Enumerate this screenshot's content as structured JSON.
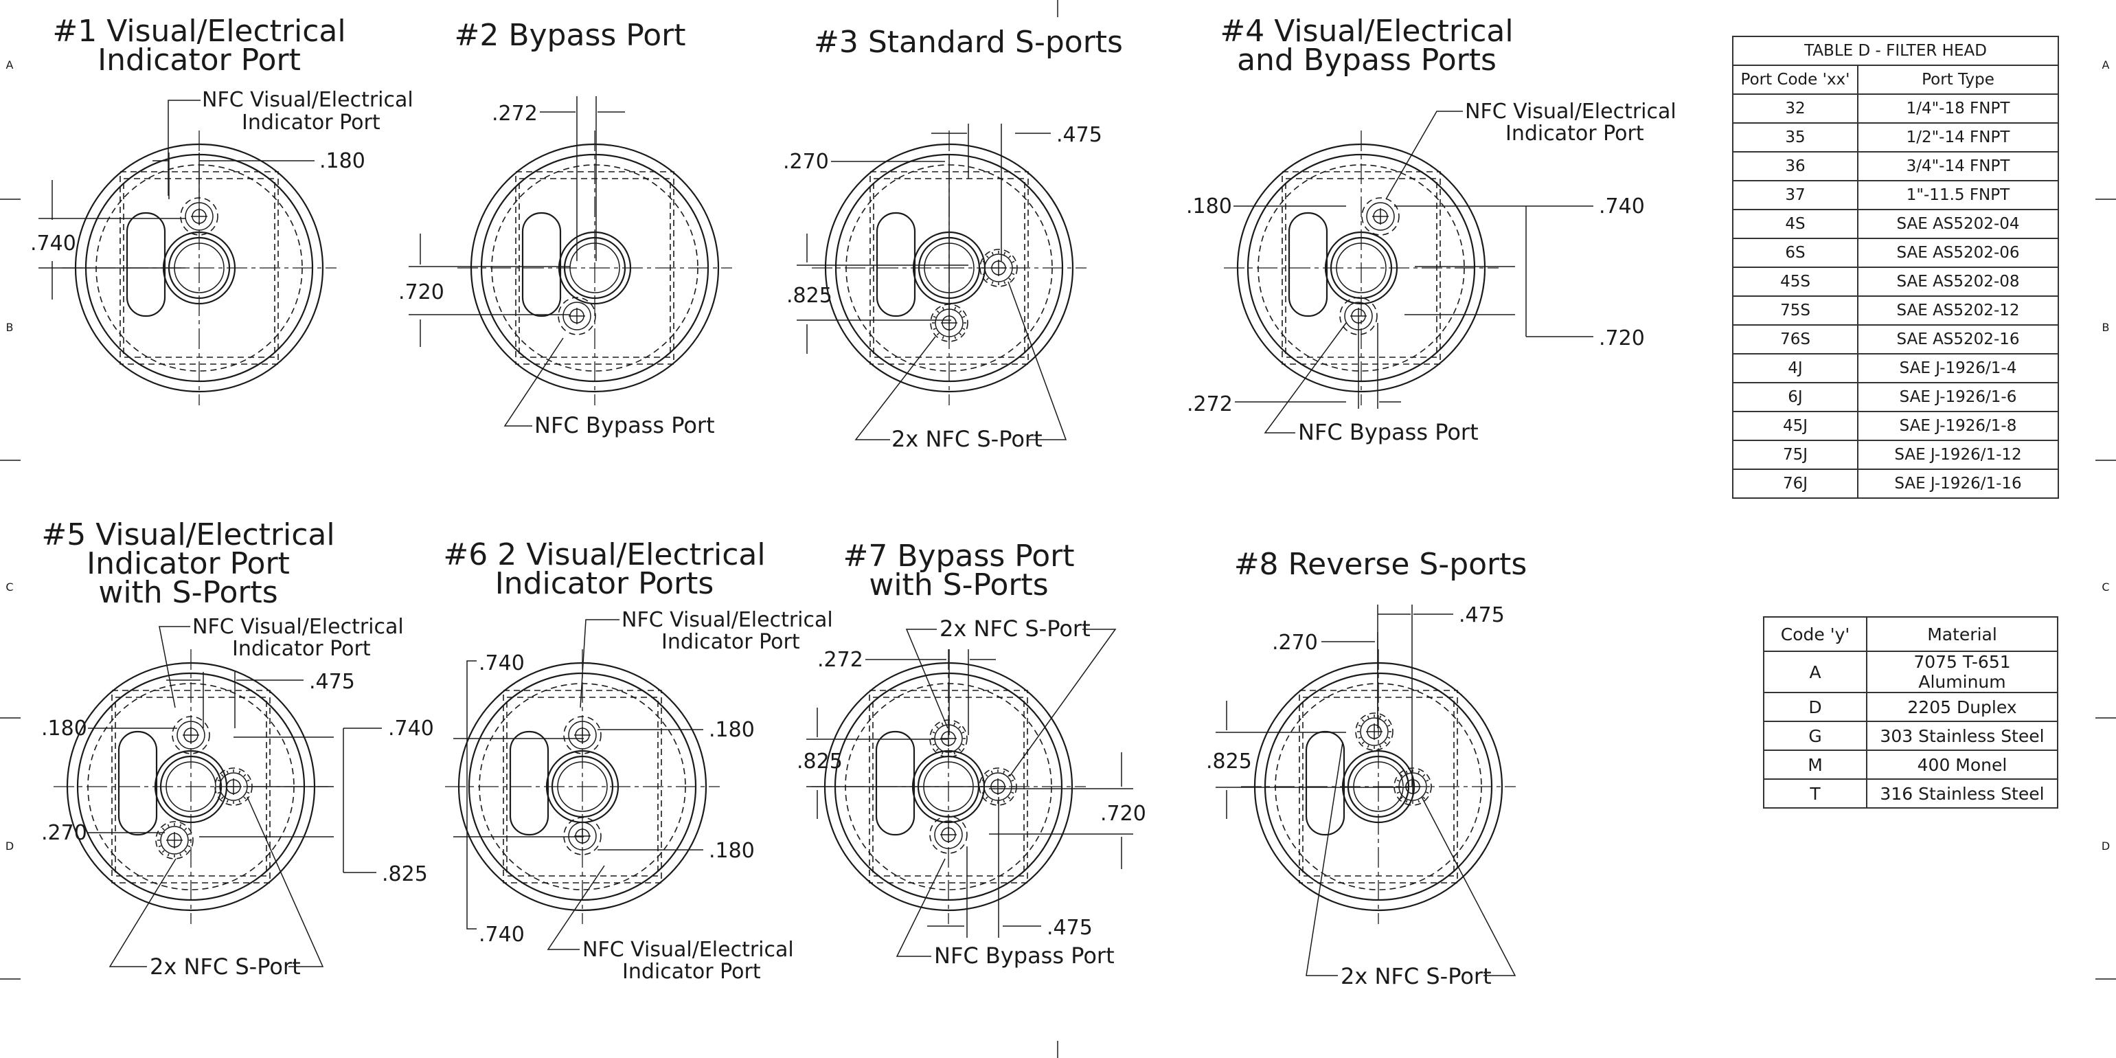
{
  "border": {
    "zone_letters_left": [
      "A",
      "B",
      "C",
      "D"
    ],
    "zone_letters_right": [
      "A",
      "B",
      "C",
      "D"
    ]
  },
  "views": [
    {
      "title_lines": [
        "#1 Visual/Electrical",
        "Indicator Port"
      ],
      "callouts": [
        "NFC Visual/Electrical",
        "Indicator Port"
      ],
      "dims": [
        ".180",
        ".740"
      ]
    },
    {
      "title_lines": [
        "#2 Bypass Port"
      ],
      "callouts": [
        "NFC Bypass Port"
      ],
      "dims": [
        ".272",
        ".720"
      ]
    },
    {
      "title_lines": [
        "#3 Standard S-ports"
      ],
      "callouts": [
        "2x NFC S-Port"
      ],
      "dims": [
        ".475",
        ".270",
        ".825"
      ]
    },
    {
      "title_lines": [
        "#4 Visual/Electrical",
        "and Bypass Ports"
      ],
      "callouts": [
        "NFC Visual/Electrical",
        "Indicator Port",
        "NFC Bypass Port"
      ],
      "dims": [
        ".180",
        ".740",
        ".720",
        ".272"
      ]
    },
    {
      "title_lines": [
        "#5 Visual/Electrical",
        "Indicator Port",
        "with S-Ports"
      ],
      "callouts": [
        "NFC Visual/Electrical",
        "Indicator Port",
        "2x NFC S-Port"
      ],
      "dims": [
        ".475",
        ".180",
        ".740",
        ".270",
        ".825"
      ]
    },
    {
      "title_lines": [
        "#6 2 Visual/Electrical",
        "Indicator Ports"
      ],
      "callouts": [
        "NFC Visual/Electrical",
        "Indicator Port",
        "NFC Visual/Electrical",
        "Indicator Port"
      ],
      "dims": [
        ".740",
        ".180",
        ".180",
        ".740"
      ]
    },
    {
      "title_lines": [
        "#7 Bypass Port",
        "with S-Ports"
      ],
      "callouts": [
        "2x NFC S-Port",
        "NFC Bypass Port"
      ],
      "dims": [
        ".272",
        ".825",
        ".720",
        ".475"
      ]
    },
    {
      "title_lines": [
        "#8 Reverse S-ports"
      ],
      "callouts": [
        "2x NFC S-Port"
      ],
      "dims": [
        ".475",
        ".270",
        ".825"
      ]
    }
  ],
  "table_d": {
    "title": "TABLE D - FILTER HEAD",
    "headers": [
      "Port Code 'xx'",
      "Port Type"
    ],
    "rows": [
      [
        "32",
        "1/4\"-18 FNPT"
      ],
      [
        "35",
        "1/2\"-14 FNPT"
      ],
      [
        "36",
        "3/4\"-14 FNPT"
      ],
      [
        "37",
        "1\"-11.5 FNPT"
      ],
      [
        "4S",
        "SAE AS5202-04"
      ],
      [
        "6S",
        "SAE AS5202-06"
      ],
      [
        "45S",
        "SAE AS5202-08"
      ],
      [
        "75S",
        "SAE AS5202-12"
      ],
      [
        "76S",
        "SAE AS5202-16"
      ],
      [
        "4J",
        "SAE J-1926/1-4"
      ],
      [
        "6J",
        "SAE J-1926/1-6"
      ],
      [
        "45J",
        "SAE J-1926/1-8"
      ],
      [
        "75J",
        "SAE J-1926/1-12"
      ],
      [
        "76J",
        "SAE J-1926/1-16"
      ]
    ]
  },
  "material_table": {
    "headers": [
      "Code 'y'",
      "Material"
    ],
    "rows": [
      [
        "A",
        "7075 T-651 Aluminum"
      ],
      [
        "D",
        "2205 Duplex"
      ],
      [
        "G",
        "303 Stainless Steel"
      ],
      [
        "M",
        "400 Monel"
      ],
      [
        "T",
        "316 Stainless Steel"
      ]
    ]
  }
}
